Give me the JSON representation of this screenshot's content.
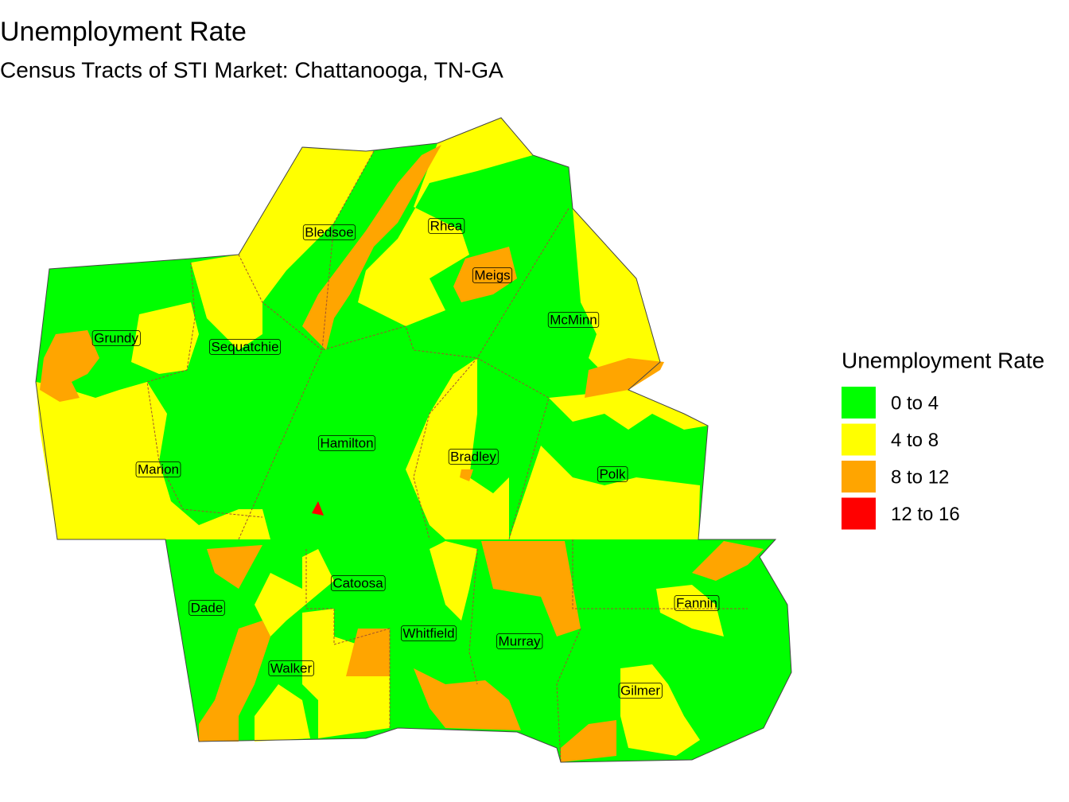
{
  "title": "Unemployment Rate",
  "subtitle": "Census Tracts of STI Market: Chattanooga, TN-GA",
  "legend": {
    "title": "Unemployment Rate",
    "items": [
      {
        "label": "0 to 4",
        "color": "#00ff00"
      },
      {
        "label": "4 to 8",
        "color": "#ffff00"
      },
      {
        "label": "8 to 12",
        "color": "#ffa500"
      },
      {
        "label": "12 to 16",
        "color": "#ff0000"
      }
    ]
  },
  "counties": [
    "Bledsoe",
    "Rhea",
    "Meigs",
    "McMinn",
    "Grundy",
    "Sequatchie",
    "Hamilton",
    "Bradley",
    "Marion",
    "Polk",
    "Catoosa",
    "Dade",
    "Fannin",
    "Whitfield",
    "Murray",
    "Walker",
    "Gilmer"
  ]
}
